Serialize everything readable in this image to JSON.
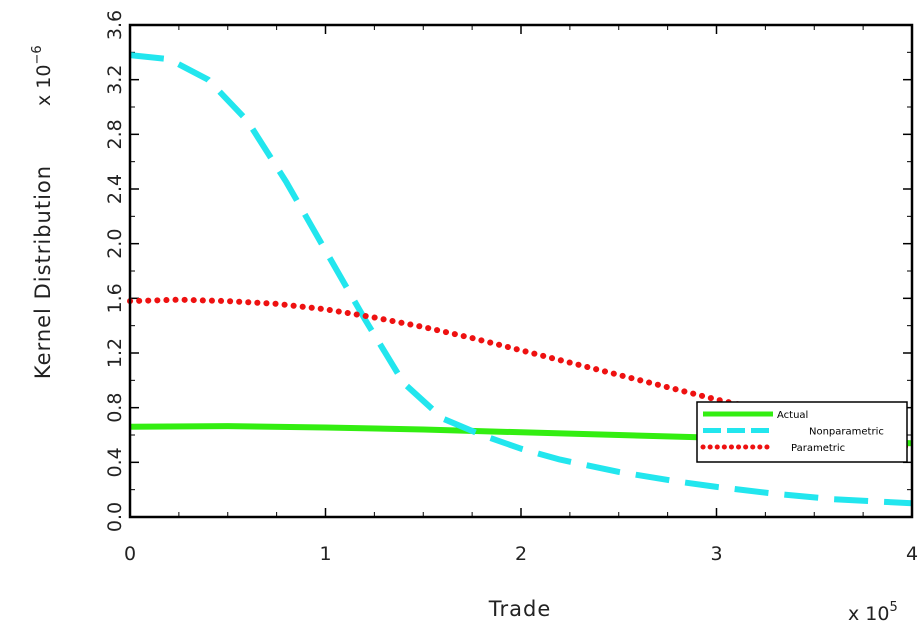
{
  "chart_data": {
    "type": "line",
    "xlabel": "Trade",
    "ylabel": "Kernel Distribution",
    "x_multiplier": "x 10",
    "x_multiplier_exp": "5",
    "y_multiplier": "x 10",
    "y_multiplier_exp": "−6",
    "xlim": [
      0,
      4
    ],
    "ylim": [
      0,
      3.6
    ],
    "xticks": [
      0,
      1,
      2,
      3,
      4
    ],
    "xtick_labels": [
      "0",
      "1",
      "2",
      "3",
      "4"
    ],
    "yticks": [
      0.0,
      0.4,
      0.8,
      1.2,
      1.6,
      2.0,
      2.4,
      2.8,
      3.2,
      3.6
    ],
    "ytick_labels": [
      "0.0",
      "0.4",
      "0.8",
      "1.2",
      "1.6",
      "2.0",
      "2.4",
      "2.8",
      "3.2",
      "3.6"
    ],
    "grid": false,
    "legend_position": "bottom-right",
    "series": [
      {
        "name": "Actual",
        "color": "#33ee11",
        "style": "solid",
        "x": [
          0,
          0.5,
          1.0,
          1.5,
          2.0,
          2.5,
          3.0,
          3.5,
          4.0
        ],
        "y": [
          0.66,
          0.665,
          0.655,
          0.64,
          0.62,
          0.6,
          0.58,
          0.56,
          0.54
        ]
      },
      {
        "name": "Nonparametric",
        "color": "#22e6ee",
        "style": "dashed",
        "x": [
          0,
          0.2,
          0.4,
          0.6,
          0.8,
          1.0,
          1.2,
          1.4,
          1.6,
          1.8,
          2.0,
          2.2,
          2.5,
          2.8,
          3.0,
          3.3,
          3.6,
          4.0
        ],
        "y": [
          3.38,
          3.35,
          3.2,
          2.9,
          2.45,
          1.95,
          1.45,
          0.98,
          0.72,
          0.6,
          0.5,
          0.42,
          0.33,
          0.26,
          0.22,
          0.17,
          0.13,
          0.1
        ]
      },
      {
        "name": "Parametric",
        "color": "#ee1111",
        "style": "dotted",
        "x": [
          0,
          0.25,
          0.5,
          0.75,
          1.0,
          1.25,
          1.5,
          1.75,
          2.0,
          2.25,
          2.5,
          2.75,
          3.0,
          3.25,
          3.5,
          3.75,
          4.0
        ],
        "y": [
          1.58,
          1.59,
          1.58,
          1.56,
          1.52,
          1.46,
          1.39,
          1.31,
          1.22,
          1.13,
          1.04,
          0.95,
          0.86,
          0.78,
          0.7,
          0.6,
          0.5
        ]
      }
    ]
  }
}
